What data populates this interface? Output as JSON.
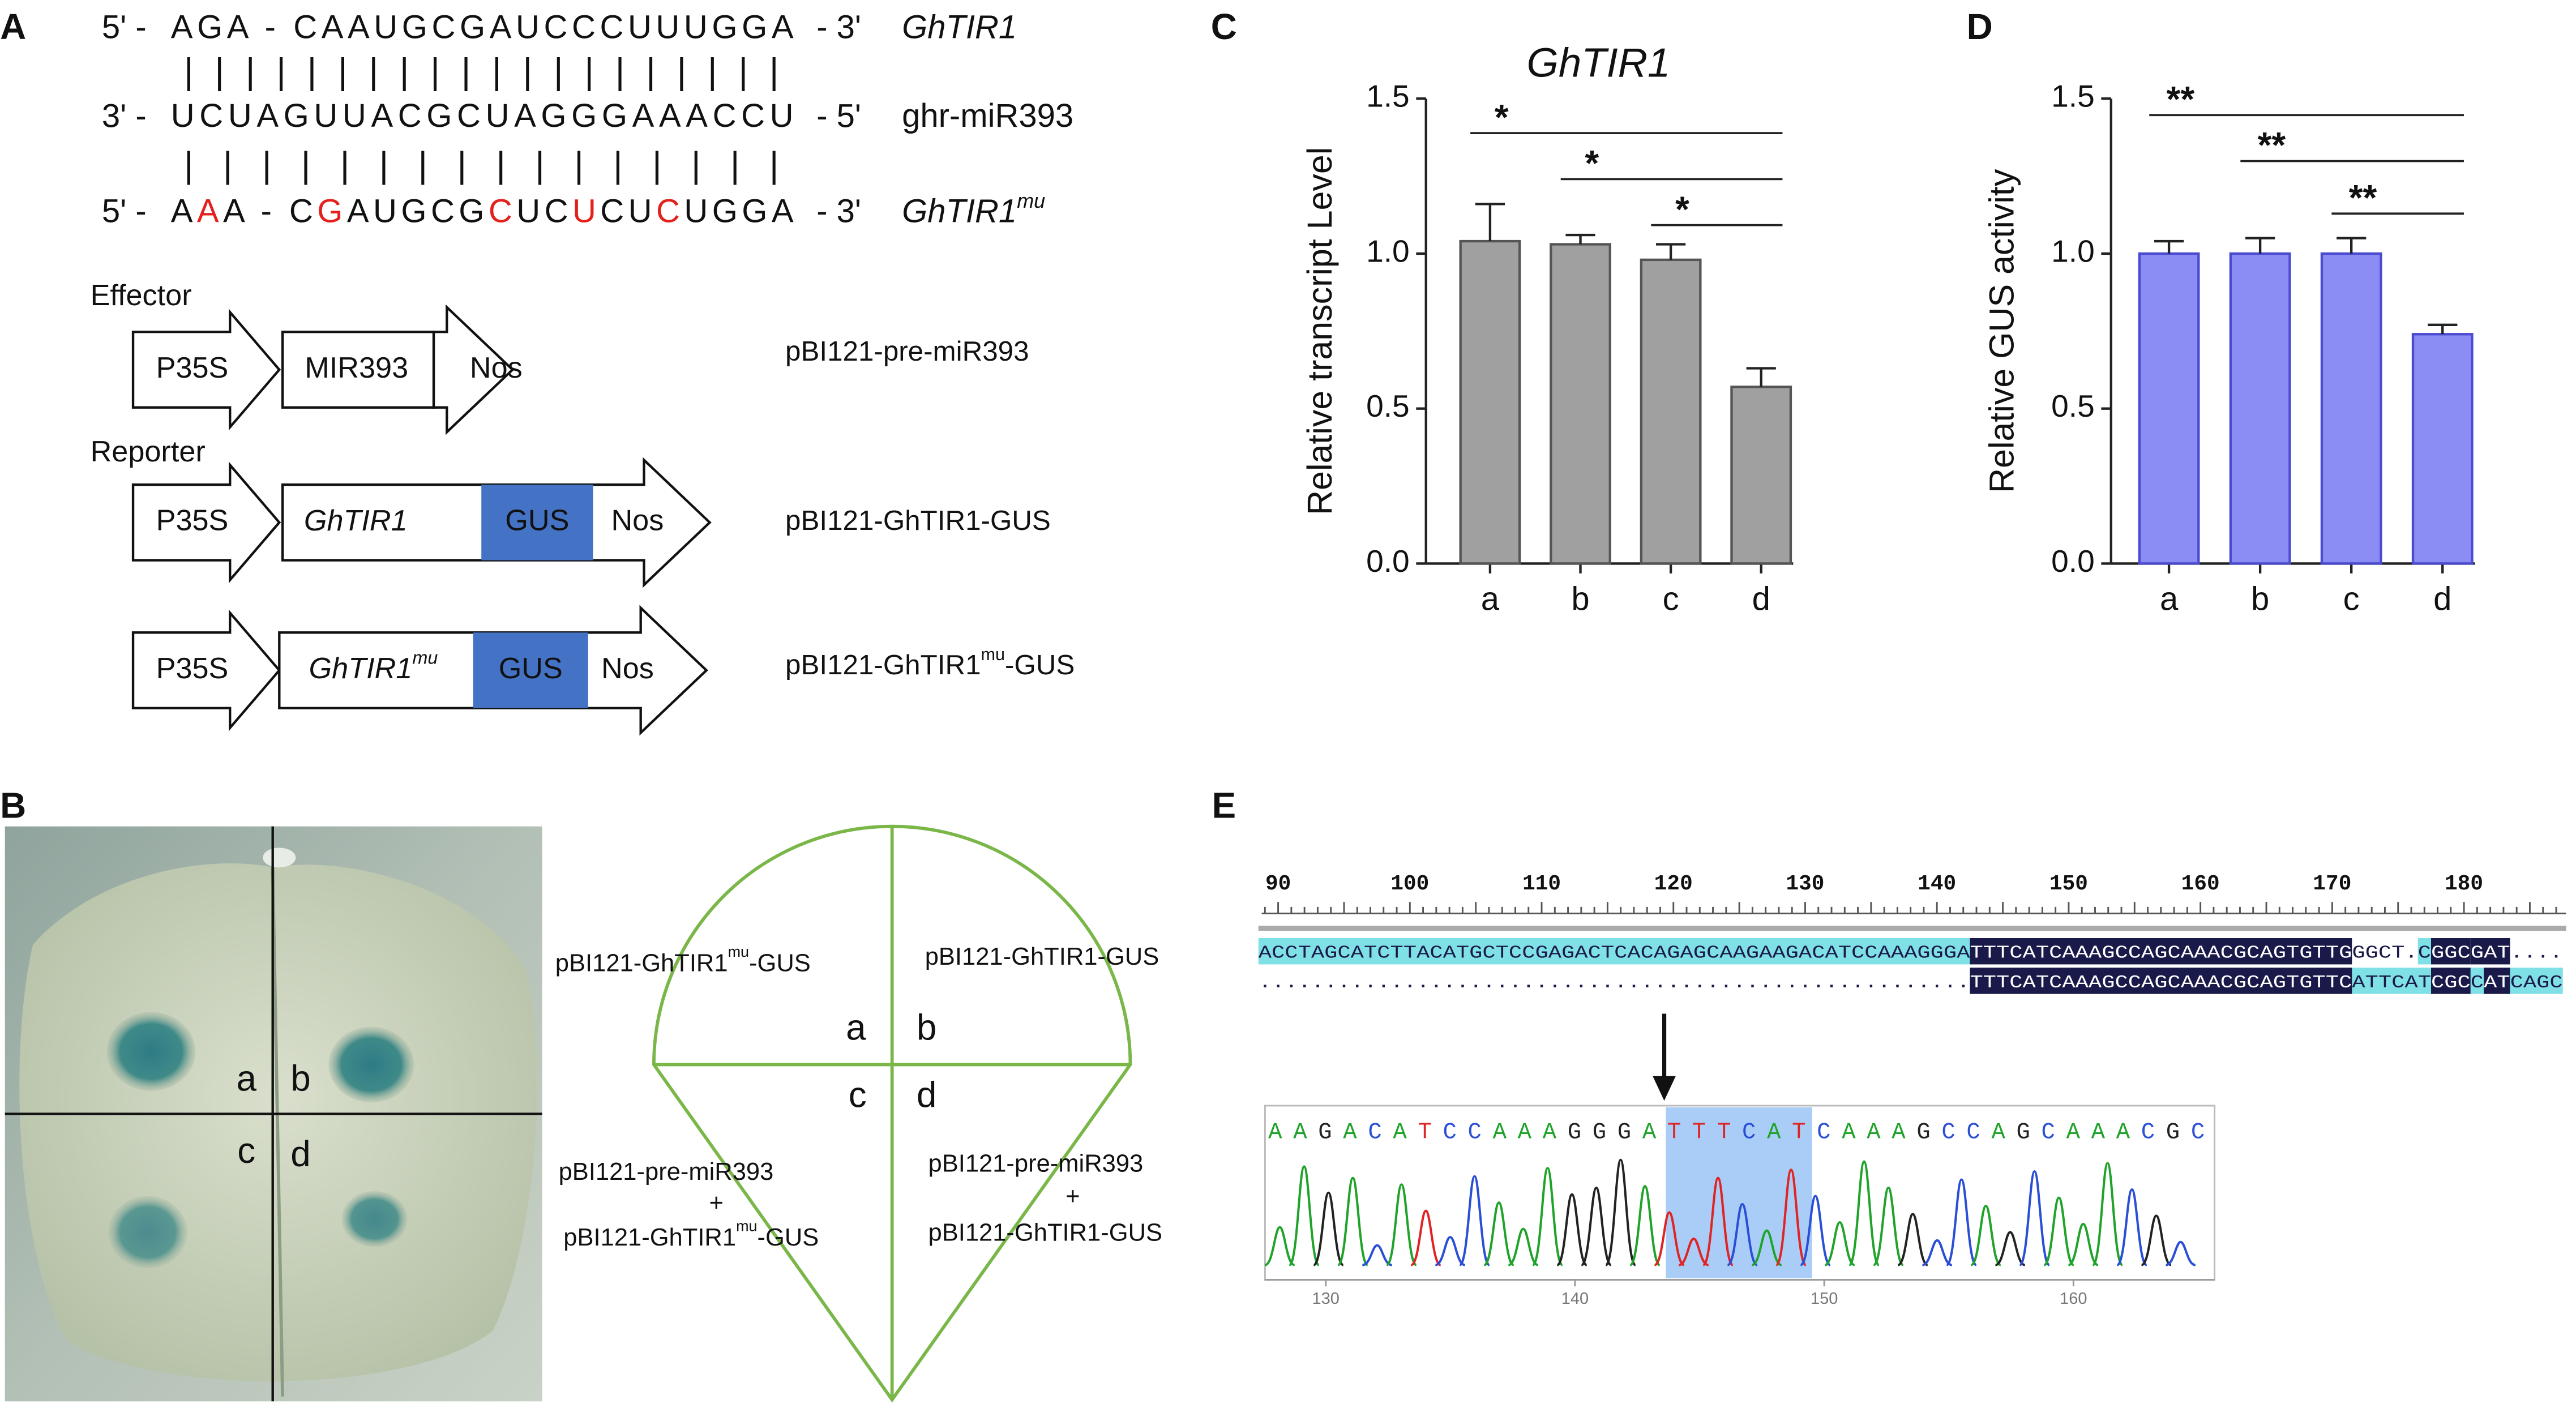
{
  "panel_labels": [
    "A",
    "B",
    "C",
    "D",
    "E"
  ],
  "panel_a": {
    "sequences": [
      {
        "left": "5' -",
        "parts": [
          {
            "text": "AGA - CAAUGCGAUCCCUUUGGA"
          }
        ],
        "right": "- 3'",
        "name": [
          {
            "text": "GhTIR1",
            "italic": true
          }
        ]
      },
      {
        "left": "3' -",
        "parts": [
          {
            "text": "UCUAGUUACGCUAGGGAAACCU"
          }
        ],
        "right": "- 5'",
        "name": [
          {
            "text": "ghr-miR393"
          }
        ]
      },
      {
        "left": "5' -",
        "parts": [
          {
            "text": "A"
          },
          {
            "text": "A",
            "color": "#e3211c"
          },
          {
            "text": "A - C"
          },
          {
            "text": "G",
            "color": "#e3211c"
          },
          {
            "text": "AUGCG"
          },
          {
            "text": "C",
            "color": "#e3211c"
          },
          {
            "text": "UC"
          },
          {
            "text": "U",
            "color": "#e3211c"
          },
          {
            "text": "CU"
          },
          {
            "text": "C",
            "color": "#e3211c"
          },
          {
            "text": "UGGA"
          }
        ],
        "right": "- 3'",
        "name": [
          {
            "text": "GhTIR1",
            "italic": true
          },
          {
            "text": "mu",
            "italic": true,
            "sup": true
          }
        ]
      }
    ],
    "pairings": [
      "| | |   | | | | | | | | | | | | | | | | |",
      "|   |   | | | | | |   | | |   | |   | | |"
    ],
    "effector_label": "Effector",
    "reporter_label": "Reporter",
    "constructs": [
      {
        "promoter": "P35S",
        "gene": [
          {
            "text": "MIR393"
          }
        ],
        "terminator": "Nos",
        "name": [
          {
            "text": "pBI121-pre-miR393"
          }
        ]
      },
      {
        "promoter": "P35S",
        "gene": [
          {
            "text": "GhTIR1",
            "italic": true
          }
        ],
        "reporter": "GUS",
        "reporter_color": "#4472c4",
        "terminator": "Nos",
        "name": [
          {
            "text": "pBI121-GhTIR1-GUS"
          }
        ]
      },
      {
        "promoter": "P35S",
        "gene": [
          {
            "text": "GhTIR1",
            "italic": true
          },
          {
            "text": "mu",
            "italic": true,
            "sup": true
          }
        ],
        "reporter": "GUS",
        "reporter_color": "#4472c4",
        "terminator": "Nos",
        "name": [
          {
            "text": "pBI121-GhTIR1"
          },
          {
            "text": "mu",
            "sup": true
          },
          {
            "text": "-GUS"
          }
        ]
      }
    ]
  },
  "panel_b": {
    "photo_labels": [
      "a",
      "b",
      "c",
      "d"
    ],
    "diagram_labels": [
      "a",
      "b",
      "c",
      "d"
    ],
    "outline_color": "#7ab648",
    "quadrants": [
      {
        "lines": [
          [
            {
              "text": "pBI121-GhTIR1"
            },
            {
              "text": "mu",
              "sup": true
            },
            {
              "text": "-GUS"
            }
          ]
        ]
      },
      {
        "lines": [
          [
            {
              "text": "pBI121-GhTIR1-GUS"
            }
          ]
        ]
      },
      {
        "lines": [
          [
            {
              "text": "pBI121-pre-miR393"
            }
          ],
          [
            {
              "text": "+"
            }
          ],
          [
            {
              "text": "pBI121-GhTIR1"
            },
            {
              "text": "mu",
              "sup": true
            },
            {
              "text": "-GUS"
            }
          ]
        ]
      },
      {
        "lines": [
          [
            {
              "text": "pBI121-pre-miR393"
            }
          ],
          [
            {
              "text": "+"
            }
          ],
          [
            {
              "text": "pBI121-GhTIR1-GUS"
            }
          ]
        ]
      }
    ]
  },
  "chart_data": [
    {
      "type": "bar",
      "title": "GhTIR1",
      "y_label": "Relative transcript Level",
      "categories": [
        "a",
        "b",
        "c",
        "d"
      ],
      "values": [
        1.04,
        1.03,
        0.98,
        0.57
      ],
      "errors": [
        0.12,
        0.03,
        0.05,
        0.06
      ],
      "color": "#a0a0a0",
      "edge_color": "#555555",
      "ylim": [
        0,
        1.5
      ],
      "yticks": [
        {
          "value": 0,
          "label": "0.0"
        },
        0.5,
        {
          "value": 1,
          "label": "1.0"
        },
        1.5
      ],
      "annotations": [
        {
          "text": "*",
          "groups": [
            "a",
            "d"
          ]
        },
        {
          "text": "*",
          "groups": [
            "b",
            "d"
          ]
        },
        {
          "text": "*",
          "groups": [
            "c",
            "d"
          ]
        }
      ]
    },
    {
      "type": "bar",
      "y_label": "Relative GUS activity",
      "categories": [
        "a",
        "b",
        "c",
        "d"
      ],
      "values": [
        1.0,
        1.0,
        1.0,
        0.74
      ],
      "errors": [
        0.04,
        0.05,
        0.05,
        0.03
      ],
      "color": "#8c8cf5",
      "edge_color": "#4b4bd0",
      "ylim": [
        0,
        1.5
      ],
      "yticks": [
        {
          "value": 0,
          "label": "0.0"
        },
        0.5,
        {
          "value": 1,
          "label": "1.0"
        },
        1.5
      ],
      "annotations": [
        {
          "text": "**",
          "groups": [
            "a",
            "d"
          ]
        },
        {
          "text": "**",
          "groups": [
            "b",
            "d"
          ]
        },
        {
          "text": "**",
          "groups": [
            "c",
            "d"
          ]
        }
      ]
    }
  ],
  "panel_e": {
    "ruler": [
      90,
      100,
      110,
      120,
      130,
      140,
      150,
      160,
      170,
      180
    ],
    "alignment": [
      [
        {
          "text": "ACCTAGCATCTTACATGCTCCGAGACTCACAGAGCAAGAAGACATCCAAAGGGA",
          "bg": "#7fe0e6"
        },
        {
          "text": "TTTCATCAAAGCCAGCAAACGCAGTGTTG",
          "bg": "#1a1a4a"
        },
        {
          "text": "GGCT.",
          "bg": "#ffffff"
        },
        {
          "text": "C",
          "bg": "#7fe0e6"
        },
        {
          "text": "GGC",
          "bg": "#1a1a4a"
        },
        {
          "text": "GAT",
          "bg": "#1a1a4a"
        },
        {
          "text": "....",
          "bg": "#ffffff"
        }
      ],
      [
        {
          "text": "......................................................",
          "bg": "#ffffff"
        },
        {
          "text": "TTTCATCAAAGCCAGCAAACGCAGTGTTC",
          "bg": "#1a1a4a"
        },
        {
          "text": "ATTCAT",
          "bg": "#7fe0e6"
        },
        {
          "text": "CGC",
          "bg": "#1a1a4a"
        },
        {
          "text": "C",
          "bg": "#7fe0e6"
        },
        {
          "text": "AT",
          "bg": "#1a1a4a"
        },
        {
          "text": "CAGC",
          "bg": "#7fe0e6"
        }
      ]
    ],
    "trace_bases": "AAGACATCCAAAGGGATTTCATCAAAGCCAGCAAACGC",
    "base_colors": {
      "A": "#1fa32a",
      "G": "#222222",
      "C": "#2a4fd6",
      "T": "#e02424"
    },
    "trace_axis": [
      130,
      140,
      150,
      160
    ]
  }
}
